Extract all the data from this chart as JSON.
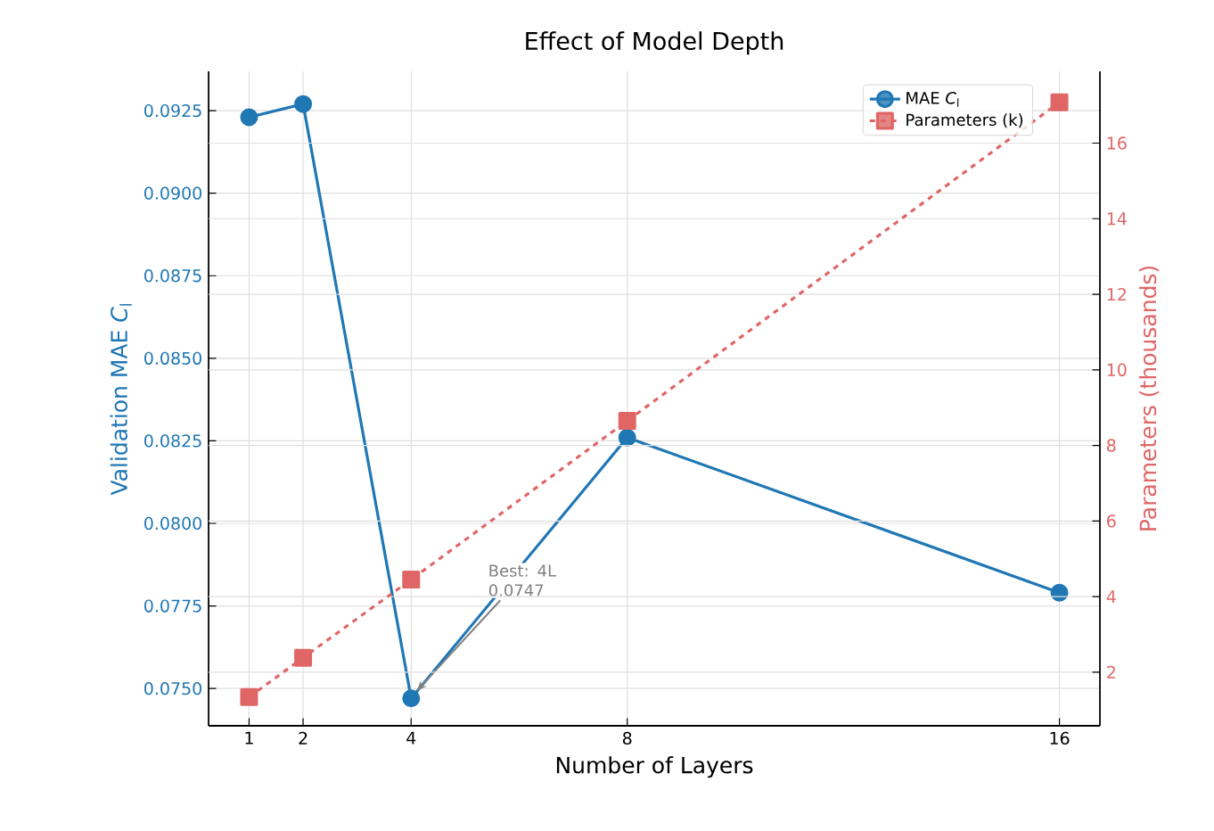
{
  "chart_data": {
    "type": "line",
    "title": "Effect of Model Depth",
    "xlabel": "Number of Layers",
    "ylabel": "Validation MAE *C*$_{l}$",
    "y2label": "Parameters (thousands)",
    "x": [
      1,
      2,
      4,
      8,
      16
    ],
    "series": [
      {
        "name": "MAE *C*$_{l}$",
        "color": "#1f77b4",
        "values": [
          0.0923,
          0.0927,
          0.0747,
          0.0826,
          0.0779
        ],
        "marker": "circle",
        "line_style": "solid"
      },
      {
        "name": "Parameters (k)",
        "color": "#e06666",
        "values": [
          1.34,
          2.38,
          4.45,
          8.65,
          17.08
        ],
        "axis": "y2",
        "marker": "square",
        "line_style": "dashed"
      }
    ],
    "xlim": [
      0.25,
      16.75
    ],
    "xticks": [
      1,
      2,
      4,
      8,
      16
    ],
    "ylim": [
      0.07387,
      0.09369
    ],
    "yticks": [
      {
        "value": 0.075,
        "label": "0.0750"
      },
      {
        "value": 0.0775,
        "label": "0.0775"
      },
      {
        "value": 0.08,
        "label": "0.0800"
      },
      {
        "value": 0.0825,
        "label": "0.0825"
      },
      {
        "value": 0.085,
        "label": "0.0850"
      },
      {
        "value": 0.0875,
        "label": "0.0875"
      },
      {
        "value": 0.09,
        "label": "0.0900"
      },
      {
        "value": 0.0925,
        "label": "0.0925"
      }
    ],
    "y2lim": [
      0.58,
      17.9
    ],
    "y2ticks": [
      2,
      4,
      6,
      8,
      10,
      12,
      14,
      16
    ],
    "annotations": [
      {
        "text": "Best: 4L 0.0747",
        "x": 4,
        "y": 0.0747
      }
    ],
    "grid": true,
    "legend": "top right"
  }
}
